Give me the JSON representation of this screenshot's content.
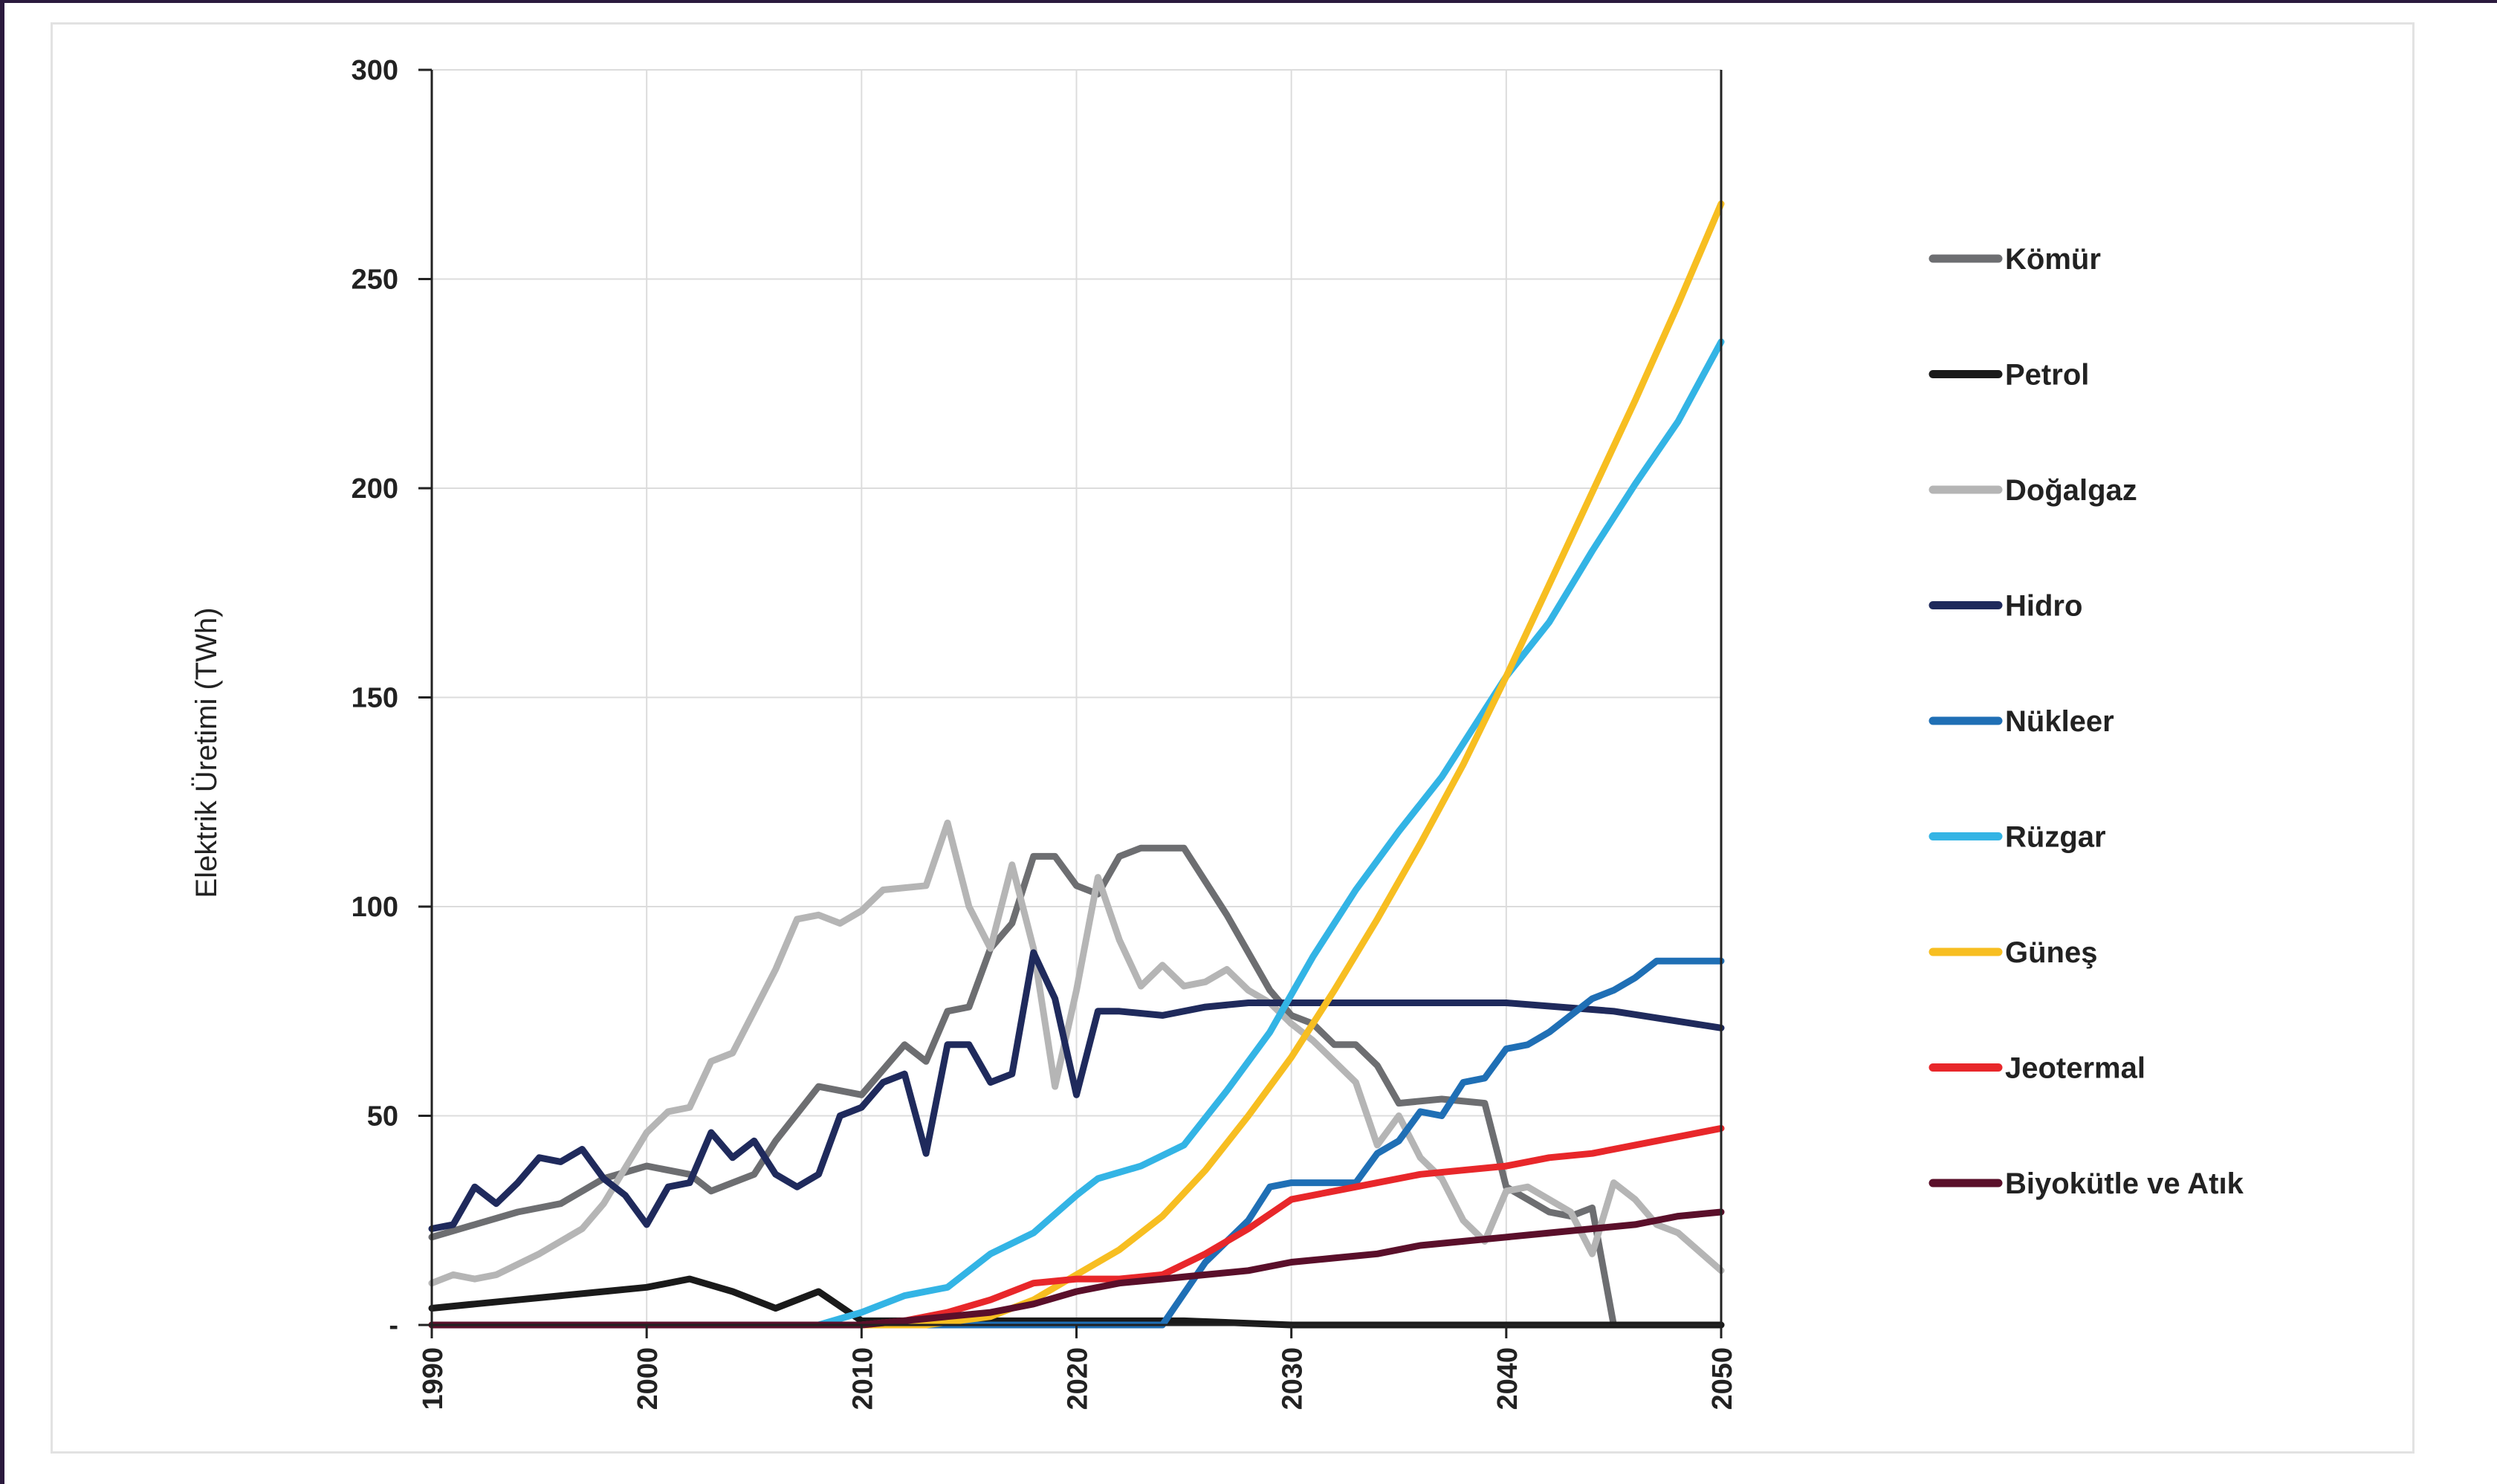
{
  "chart_data": {
    "type": "line",
    "title": "",
    "xlabel": "",
    "ylabel": "Elektrik Üretimi (TWh)",
    "xlim": [
      1990,
      2050
    ],
    "ylim": [
      0,
      300
    ],
    "x_ticks": [
      1990,
      2000,
      2010,
      2020,
      2030,
      2040,
      2050
    ],
    "x_tick_labels": [
      "1990",
      "2000",
      "2010",
      "2020",
      "2030",
      "2040",
      "2050"
    ],
    "y_ticks": [
      0,
      50,
      100,
      150,
      200,
      250,
      300
    ],
    "y_tick_labels": [
      "-",
      "50",
      "100",
      "150",
      "200",
      "250",
      "300"
    ],
    "grid": true,
    "legend_position": "right",
    "series": [
      {
        "name": "Kömür",
        "color": "#6d6e71",
        "points": [
          [
            1990,
            21
          ],
          [
            1992,
            24
          ],
          [
            1994,
            27
          ],
          [
            1996,
            29
          ],
          [
            1998,
            35
          ],
          [
            2000,
            38
          ],
          [
            2002,
            36
          ],
          [
            2003,
            32
          ],
          [
            2005,
            36
          ],
          [
            2006,
            44
          ],
          [
            2008,
            57
          ],
          [
            2010,
            55
          ],
          [
            2012,
            67
          ],
          [
            2013,
            63
          ],
          [
            2014,
            75
          ],
          [
            2015,
            76
          ],
          [
            2016,
            90
          ],
          [
            2017,
            96
          ],
          [
            2018,
            112
          ],
          [
            2019,
            112
          ],
          [
            2020,
            105
          ],
          [
            2021,
            103
          ],
          [
            2022,
            112
          ],
          [
            2023,
            114
          ],
          [
            2025,
            114
          ],
          [
            2027,
            98
          ],
          [
            2029,
            80
          ],
          [
            2030,
            74
          ],
          [
            2031,
            72
          ],
          [
            2032,
            67
          ],
          [
            2033,
            67
          ],
          [
            2034,
            62
          ],
          [
            2035,
            53
          ],
          [
            2037,
            54
          ],
          [
            2039,
            53
          ],
          [
            2040,
            33
          ],
          [
            2041,
            30
          ],
          [
            2042,
            27
          ],
          [
            2043,
            26
          ],
          [
            2044,
            28
          ],
          [
            2045,
            0
          ],
          [
            2050,
            0
          ]
        ]
      },
      {
        "name": "Petrol",
        "color": "#1a1a1a",
        "points": [
          [
            1990,
            4
          ],
          [
            1992,
            5
          ],
          [
            1994,
            6
          ],
          [
            1996,
            7
          ],
          [
            1998,
            8
          ],
          [
            2000,
            9
          ],
          [
            2002,
            11
          ],
          [
            2004,
            8
          ],
          [
            2006,
            4
          ],
          [
            2008,
            8
          ],
          [
            2010,
            1
          ],
          [
            2012,
            1
          ],
          [
            2015,
            1
          ],
          [
            2020,
            1
          ],
          [
            2025,
            1
          ],
          [
            2030,
            0
          ],
          [
            2050,
            0
          ]
        ]
      },
      {
        "name": "Doğalgaz",
        "color": "#b5b5b5",
        "points": [
          [
            1990,
            10
          ],
          [
            1991,
            12
          ],
          [
            1992,
            11
          ],
          [
            1993,
            12
          ],
          [
            1995,
            17
          ],
          [
            1997,
            23
          ],
          [
            1998,
            29
          ],
          [
            2000,
            46
          ],
          [
            2001,
            51
          ],
          [
            2002,
            52
          ],
          [
            2003,
            63
          ],
          [
            2004,
            65
          ],
          [
            2005,
            75
          ],
          [
            2006,
            85
          ],
          [
            2007,
            97
          ],
          [
            2008,
            98
          ],
          [
            2009,
            96
          ],
          [
            2010,
            99
          ],
          [
            2011,
            104
          ],
          [
            2013,
            105
          ],
          [
            2014,
            120
          ],
          [
            2015,
            100
          ],
          [
            2016,
            90
          ],
          [
            2017,
            110
          ],
          [
            2018,
            90
          ],
          [
            2019,
            57
          ],
          [
            2020,
            80
          ],
          [
            2021,
            107
          ],
          [
            2022,
            92
          ],
          [
            2023,
            81
          ],
          [
            2024,
            86
          ],
          [
            2025,
            81
          ],
          [
            2026,
            82
          ],
          [
            2027,
            85
          ],
          [
            2028,
            80
          ],
          [
            2029,
            77
          ],
          [
            2030,
            72
          ],
          [
            2031,
            68
          ],
          [
            2032,
            63
          ],
          [
            2033,
            58
          ],
          [
            2034,
            43
          ],
          [
            2035,
            50
          ],
          [
            2036,
            40
          ],
          [
            2037,
            35
          ],
          [
            2038,
            25
          ],
          [
            2039,
            20
          ],
          [
            2040,
            32
          ],
          [
            2041,
            33
          ],
          [
            2042,
            30
          ],
          [
            2043,
            27
          ],
          [
            2044,
            17
          ],
          [
            2045,
            34
          ],
          [
            2046,
            30
          ],
          [
            2047,
            24
          ],
          [
            2048,
            22
          ],
          [
            2050,
            13
          ]
        ]
      },
      {
        "name": "Hidro",
        "color": "#1f2a5c",
        "points": [
          [
            1990,
            23
          ],
          [
            1991,
            24
          ],
          [
            1992,
            33
          ],
          [
            1993,
            29
          ],
          [
            1994,
            34
          ],
          [
            1995,
            40
          ],
          [
            1996,
            39
          ],
          [
            1997,
            42
          ],
          [
            1998,
            35
          ],
          [
            1999,
            31
          ],
          [
            2000,
            24
          ],
          [
            2001,
            33
          ],
          [
            2002,
            34
          ],
          [
            2003,
            46
          ],
          [
            2004,
            40
          ],
          [
            2005,
            44
          ],
          [
            2006,
            36
          ],
          [
            2007,
            33
          ],
          [
            2008,
            36
          ],
          [
            2009,
            50
          ],
          [
            2010,
            52
          ],
          [
            2011,
            58
          ],
          [
            2012,
            60
          ],
          [
            2013,
            41
          ],
          [
            2014,
            67
          ],
          [
            2015,
            67
          ],
          [
            2016,
            58
          ],
          [
            2017,
            60
          ],
          [
            2018,
            89
          ],
          [
            2019,
            78
          ],
          [
            2020,
            55
          ],
          [
            2021,
            75
          ],
          [
            2022,
            75
          ],
          [
            2024,
            74
          ],
          [
            2026,
            76
          ],
          [
            2028,
            77
          ],
          [
            2030,
            77
          ],
          [
            2032,
            77
          ],
          [
            2035,
            77
          ],
          [
            2040,
            77
          ],
          [
            2045,
            75
          ],
          [
            2050,
            71
          ]
        ]
      },
      {
        "name": "Nükleer",
        "color": "#1f6fb5",
        "points": [
          [
            1990,
            0
          ],
          [
            2024,
            0
          ],
          [
            2026,
            15
          ],
          [
            2028,
            25
          ],
          [
            2029,
            33
          ],
          [
            2030,
            34
          ],
          [
            2033,
            34
          ],
          [
            2034,
            41
          ],
          [
            2035,
            44
          ],
          [
            2036,
            51
          ],
          [
            2037,
            50
          ],
          [
            2038,
            58
          ],
          [
            2039,
            59
          ],
          [
            2040,
            66
          ],
          [
            2041,
            67
          ],
          [
            2042,
            70
          ],
          [
            2043,
            74
          ],
          [
            2044,
            78
          ],
          [
            2045,
            80
          ],
          [
            2046,
            83
          ],
          [
            2047,
            87
          ],
          [
            2050,
            87
          ]
        ]
      },
      {
        "name": "Rüzgar",
        "color": "#33b4e5",
        "points": [
          [
            1990,
            0
          ],
          [
            2008,
            0
          ],
          [
            2010,
            3
          ],
          [
            2012,
            7
          ],
          [
            2014,
            9
          ],
          [
            2016,
            17
          ],
          [
            2018,
            22
          ],
          [
            2020,
            31
          ],
          [
            2021,
            35
          ],
          [
            2023,
            38
          ],
          [
            2025,
            43
          ],
          [
            2027,
            56
          ],
          [
            2029,
            70
          ],
          [
            2031,
            88
          ],
          [
            2033,
            104
          ],
          [
            2035,
            118
          ],
          [
            2037,
            131
          ],
          [
            2040,
            155
          ],
          [
            2042,
            168
          ],
          [
            2044,
            185
          ],
          [
            2046,
            201
          ],
          [
            2048,
            216
          ],
          [
            2050,
            235
          ]
        ]
      },
      {
        "name": "Güneş",
        "color": "#f7be21",
        "points": [
          [
            1990,
            0
          ],
          [
            2013,
            0
          ],
          [
            2016,
            2
          ],
          [
            2018,
            6
          ],
          [
            2020,
            12
          ],
          [
            2022,
            18
          ],
          [
            2024,
            26
          ],
          [
            2026,
            37
          ],
          [
            2028,
            50
          ],
          [
            2030,
            64
          ],
          [
            2032,
            80
          ],
          [
            2034,
            97
          ],
          [
            2036,
            115
          ],
          [
            2038,
            134
          ],
          [
            2040,
            155
          ],
          [
            2042,
            177
          ],
          [
            2044,
            199
          ],
          [
            2046,
            221
          ],
          [
            2048,
            244
          ],
          [
            2050,
            268
          ]
        ]
      },
      {
        "name": "Jeotermal",
        "color": "#e8272a",
        "points": [
          [
            1990,
            0
          ],
          [
            2010,
            0
          ],
          [
            2012,
            1
          ],
          [
            2014,
            3
          ],
          [
            2016,
            6
          ],
          [
            2018,
            10
          ],
          [
            2020,
            11
          ],
          [
            2022,
            11
          ],
          [
            2024,
            12
          ],
          [
            2026,
            17
          ],
          [
            2028,
            23
          ],
          [
            2030,
            30
          ],
          [
            2032,
            32
          ],
          [
            2034,
            34
          ],
          [
            2036,
            36
          ],
          [
            2038,
            37
          ],
          [
            2040,
            38
          ],
          [
            2042,
            40
          ],
          [
            2044,
            41
          ],
          [
            2046,
            43
          ],
          [
            2048,
            45
          ],
          [
            2050,
            47
          ]
        ]
      },
      {
        "name": "Biyokütle ve Atık",
        "color": "#5a0f2a",
        "points": [
          [
            1990,
            0
          ],
          [
            2008,
            0
          ],
          [
            2010,
            0
          ],
          [
            2012,
            1
          ],
          [
            2014,
            2
          ],
          [
            2016,
            3
          ],
          [
            2018,
            5
          ],
          [
            2020,
            8
          ],
          [
            2022,
            10
          ],
          [
            2024,
            11
          ],
          [
            2026,
            12
          ],
          [
            2028,
            13
          ],
          [
            2030,
            15
          ],
          [
            2032,
            16
          ],
          [
            2034,
            17
          ],
          [
            2036,
            19
          ],
          [
            2038,
            20
          ],
          [
            2040,
            21
          ],
          [
            2042,
            22
          ],
          [
            2044,
            23
          ],
          [
            2046,
            24
          ],
          [
            2048,
            26
          ],
          [
            2050,
            27
          ]
        ]
      }
    ]
  }
}
